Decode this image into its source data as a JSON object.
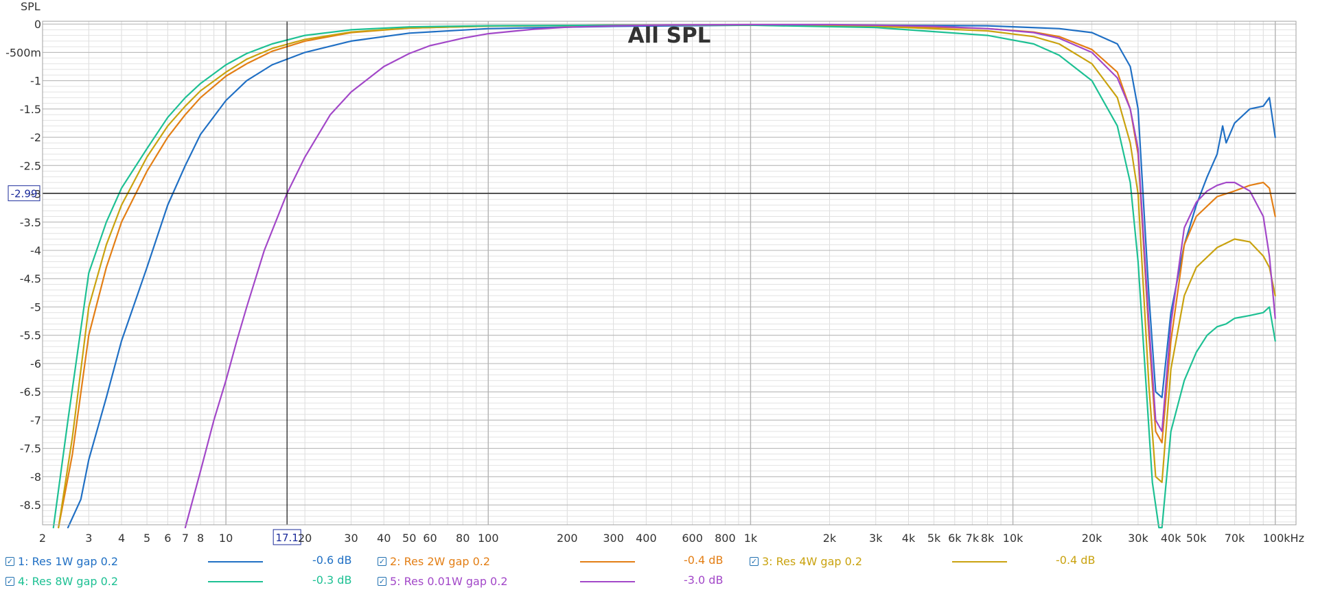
{
  "chart_data": {
    "type": "line",
    "title": "All SPL",
    "ylabel": "SPL",
    "xunit": "kHz",
    "x_scale": "log",
    "xlim": [
      2,
      120000
    ],
    "ylim": [
      -8.85,
      0.05
    ],
    "grid": true,
    "legend_position": "bottom",
    "y_ticks": [
      {
        "v": 0,
        "label": "0"
      },
      {
        "v": -0.5,
        "label": "-500m"
      },
      {
        "v": -1,
        "label": "-1"
      },
      {
        "v": -1.5,
        "label": "-1.5"
      },
      {
        "v": -2,
        "label": "-2"
      },
      {
        "v": -2.5,
        "label": "-2.5"
      },
      {
        "v": -3,
        "label": "-3"
      },
      {
        "v": -3.5,
        "label": "-3.5"
      },
      {
        "v": -4,
        "label": "-4"
      },
      {
        "v": -4.5,
        "label": "-4.5"
      },
      {
        "v": -5,
        "label": "-5"
      },
      {
        "v": -5.5,
        "label": "-5.5"
      },
      {
        "v": -6,
        "label": "-6"
      },
      {
        "v": -6.5,
        "label": "-6.5"
      },
      {
        "v": -7,
        "label": "-7"
      },
      {
        "v": -7.5,
        "label": "-7.5"
      },
      {
        "v": -8,
        "label": "-8"
      },
      {
        "v": -8.5,
        "label": "-8.5"
      }
    ],
    "x_ticks": [
      {
        "v": 2,
        "label": "2"
      },
      {
        "v": 3,
        "label": "3"
      },
      {
        "v": 4,
        "label": "4"
      },
      {
        "v": 5,
        "label": "5"
      },
      {
        "v": 6,
        "label": "6"
      },
      {
        "v": 7,
        "label": "7"
      },
      {
        "v": 8,
        "label": "8"
      },
      {
        "v": 10,
        "label": "10"
      },
      {
        "v": 20,
        "label": "20"
      },
      {
        "v": 30,
        "label": "30"
      },
      {
        "v": 40,
        "label": "40"
      },
      {
        "v": 50,
        "label": "50"
      },
      {
        "v": 60,
        "label": "60"
      },
      {
        "v": 80,
        "label": "80"
      },
      {
        "v": 100,
        "label": "100"
      },
      {
        "v": 200,
        "label": "200"
      },
      {
        "v": 300,
        "label": "300"
      },
      {
        "v": 400,
        "label": "400"
      },
      {
        "v": 600,
        "label": "600"
      },
      {
        "v": 800,
        "label": "800"
      },
      {
        "v": 1000,
        "label": "1k"
      },
      {
        "v": 2000,
        "label": "2k"
      },
      {
        "v": 3000,
        "label": "3k"
      },
      {
        "v": 4000,
        "label": "4k"
      },
      {
        "v": 5000,
        "label": "5k"
      },
      {
        "v": 6000,
        "label": "6k"
      },
      {
        "v": 7000,
        "label": "7k"
      },
      {
        "v": 8000,
        "label": "8k"
      },
      {
        "v": 10000,
        "label": "10k"
      },
      {
        "v": 20000,
        "label": "20k"
      },
      {
        "v": 30000,
        "label": "30k"
      },
      {
        "v": 40000,
        "label": "40k"
      },
      {
        "v": 50000,
        "label": "50k"
      },
      {
        "v": 70000,
        "label": "70k"
      },
      {
        "v": 100000,
        "label": "100kHz"
      }
    ],
    "cursor": {
      "x": 17.1,
      "y": -2.99,
      "x_label": "17.1",
      "y_label": "-2.99"
    },
    "series": [
      {
        "name": "1: Res 1W gap 0.2",
        "value_label": "-0.6 dB",
        "color": "#1f6fc4",
        "x": [
          2.5,
          2.8,
          3,
          3.5,
          4,
          5,
          6,
          7,
          8,
          10,
          12,
          15,
          20,
          30,
          50,
          100,
          300,
          1000,
          3000,
          8000,
          15000,
          20000,
          25000,
          28000,
          30000,
          33000,
          35000,
          37000,
          40000,
          45000,
          50000,
          55000,
          60000,
          63000,
          65000,
          70000,
          80000,
          90000,
          95000,
          100000
        ],
        "y": [
          -8.9,
          -8.4,
          -7.7,
          -6.6,
          -5.6,
          -4.3,
          -3.2,
          -2.5,
          -1.95,
          -1.35,
          -1.0,
          -0.72,
          -0.5,
          -0.3,
          -0.16,
          -0.08,
          -0.04,
          -0.02,
          -0.02,
          -0.03,
          -0.08,
          -0.15,
          -0.35,
          -0.75,
          -1.5,
          -4.8,
          -6.5,
          -6.6,
          -5.1,
          -3.9,
          -3.2,
          -2.7,
          -2.3,
          -1.8,
          -2.1,
          -1.75,
          -1.5,
          -1.45,
          -1.3,
          -2.0
        ]
      },
      {
        "name": "2: Res 2W gap 0.2",
        "value_label": "-0.4 dB",
        "color": "#e37e14",
        "x": [
          2.3,
          2.6,
          3,
          3.5,
          4,
          5,
          6,
          7,
          8,
          10,
          12,
          15,
          20,
          30,
          50,
          100,
          300,
          1000,
          3000,
          8000,
          12000,
          15000,
          20000,
          25000,
          28000,
          30000,
          33000,
          35000,
          37000,
          40000,
          45000,
          50000,
          60000,
          70000,
          80000,
          90000,
          95000,
          100000
        ],
        "y": [
          -8.9,
          -7.6,
          -5.5,
          -4.3,
          -3.5,
          -2.6,
          -2.0,
          -1.6,
          -1.3,
          -0.92,
          -0.7,
          -0.48,
          -0.3,
          -0.15,
          -0.07,
          -0.035,
          -0.02,
          -0.02,
          -0.03,
          -0.08,
          -0.14,
          -0.22,
          -0.45,
          -0.85,
          -1.5,
          -2.3,
          -5.5,
          -7.2,
          -7.4,
          -5.6,
          -3.9,
          -3.4,
          -3.05,
          -2.95,
          -2.85,
          -2.8,
          -2.9,
          -3.4
        ]
      },
      {
        "name": "3: Res 4W gap 0.2",
        "value_label": "-0.4 dB",
        "color": "#c9a20e",
        "x": [
          2.3,
          2.6,
          3,
          3.5,
          4,
          5,
          6,
          7,
          8,
          10,
          12,
          15,
          20,
          30,
          50,
          100,
          300,
          1000,
          3000,
          8000,
          12000,
          15000,
          20000,
          25000,
          28000,
          30000,
          33000,
          35000,
          37000,
          40000,
          45000,
          50000,
          60000,
          70000,
          80000,
          90000,
          95000,
          100000
        ],
        "y": [
          -8.9,
          -7.3,
          -5.0,
          -3.9,
          -3.2,
          -2.35,
          -1.8,
          -1.45,
          -1.18,
          -0.85,
          -0.62,
          -0.43,
          -0.27,
          -0.14,
          -0.07,
          -0.035,
          -0.02,
          -0.02,
          -0.04,
          -0.12,
          -0.22,
          -0.35,
          -0.7,
          -1.3,
          -2.1,
          -3.0,
          -6.4,
          -8.0,
          -8.1,
          -6.1,
          -4.8,
          -4.3,
          -3.95,
          -3.8,
          -3.85,
          -4.1,
          -4.3,
          -4.8
        ]
      },
      {
        "name": "4: Res 8W gap 0.2",
        "value_label": "-0.3 dB",
        "color": "#1dc093",
        "x": [
          2.2,
          2.5,
          3,
          3.5,
          4,
          5,
          6,
          7,
          8,
          10,
          12,
          15,
          20,
          30,
          50,
          100,
          300,
          1000,
          3000,
          8000,
          12000,
          15000,
          20000,
          25000,
          28000,
          30000,
          32000,
          34000,
          36000,
          37000,
          40000,
          45000,
          50000,
          55000,
          60000,
          65000,
          70000,
          80000,
          90000,
          95000,
          100000
        ],
        "y": [
          -8.9,
          -7.0,
          -4.4,
          -3.5,
          -2.9,
          -2.2,
          -1.65,
          -1.3,
          -1.05,
          -0.72,
          -0.52,
          -0.35,
          -0.2,
          -0.1,
          -0.05,
          -0.03,
          -0.02,
          -0.02,
          -0.06,
          -0.2,
          -0.35,
          -0.55,
          -1.0,
          -1.8,
          -2.8,
          -4.2,
          -6.2,
          -8.1,
          -8.9,
          -8.9,
          -7.2,
          -6.3,
          -5.8,
          -5.5,
          -5.35,
          -5.3,
          -5.2,
          -5.15,
          -5.1,
          -5.0,
          -5.6
        ]
      },
      {
        "name": "5: Res 0.01W gap 0.2",
        "value_label": "-3.0 dB",
        "color": "#a247c8",
        "x": [
          7,
          8,
          9,
          10,
          11,
          12,
          14,
          17.1,
          20,
          25,
          30,
          40,
          50,
          60,
          80,
          100,
          150,
          200,
          300,
          500,
          1000,
          2000,
          3000,
          5000,
          8000,
          12000,
          15000,
          20000,
          25000,
          28000,
          30000,
          33000,
          35000,
          37000,
          40000,
          45000,
          50000,
          55000,
          60000,
          65000,
          70000,
          80000,
          90000,
          95000,
          100000
        ],
        "y": [
          -8.9,
          -7.9,
          -7.0,
          -6.3,
          -5.6,
          -5.0,
          -4.0,
          -2.99,
          -2.35,
          -1.6,
          -1.2,
          -0.75,
          -0.52,
          -0.38,
          -0.25,
          -0.17,
          -0.09,
          -0.055,
          -0.03,
          -0.015,
          -0.01,
          -0.01,
          -0.02,
          -0.04,
          -0.08,
          -0.15,
          -0.25,
          -0.5,
          -0.95,
          -1.5,
          -2.2,
          -5.3,
          -7.0,
          -7.2,
          -5.3,
          -3.6,
          -3.15,
          -2.95,
          -2.85,
          -2.8,
          -2.8,
          -2.95,
          -3.4,
          -4.1,
          -5.2
        ]
      }
    ]
  },
  "legend": [
    {
      "label": "1: Res 1W gap 0.2",
      "value": "-0.6 dB",
      "color": "#1f6fc4"
    },
    {
      "label": "2: Res 2W gap 0.2",
      "value": "-0.4 dB",
      "color": "#e37e14"
    },
    {
      "label": "3: Res 4W gap 0.2",
      "value": "-0.4 dB",
      "color": "#c9a20e"
    },
    {
      "label": "4: Res 8W gap 0.2",
      "value": "-0.3 dB",
      "color": "#1dc093"
    },
    {
      "label": "5: Res 0.01W gap 0.2",
      "value": "-3.0 dB",
      "color": "#a247c8"
    }
  ]
}
